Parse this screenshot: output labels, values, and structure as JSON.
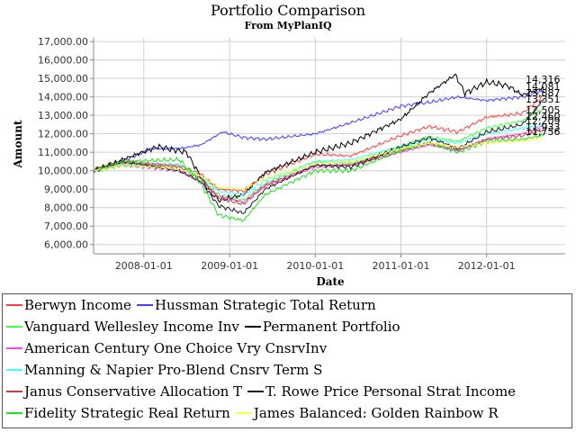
{
  "chart_data": {
    "type": "line",
    "title": "Portfolio Comparison",
    "subtitle": "From MyPlanIQ",
    "xlabel": "Date",
    "ylabel": "Amount",
    "ylim": [
      5500,
      17200
    ],
    "xlim": [
      "2007-06-01",
      "2012-12-01"
    ],
    "yticks": [
      "6,000.00",
      "7,000.00",
      "8,000.00",
      "9,000.00",
      "10,000.00",
      "11,000.00",
      "12,000.00",
      "13,000.00",
      "14,000.00",
      "15,000.00",
      "16,000.00",
      "17,000.00"
    ],
    "ytick_values": [
      6000,
      7000,
      8000,
      9000,
      10000,
      11000,
      12000,
      13000,
      14000,
      15000,
      16000,
      17000
    ],
    "xticks": [
      "2008-01-01",
      "2009-01-01",
      "2010-01-01",
      "2011-01-01",
      "2012-01-01"
    ],
    "grid": true,
    "legend_position": "bottom",
    "end_labels": [
      "14,316",
      "14,081",
      "13,887",
      "13,351",
      "12,505",
      "12,460",
      "12,209",
      "11,933",
      "11,756"
    ],
    "series": [
      {
        "name": "Berwyn Income",
        "color": "#ff4040",
        "x": [
          "2007-06-01",
          "2007-10-01",
          "2008-06-01",
          "2008-09-01",
          "2008-11-15",
          "2009-03-01",
          "2009-06-01",
          "2010-01-01",
          "2010-06-01",
          "2011-01-01",
          "2011-05-01",
          "2011-09-01",
          "2012-01-01",
          "2012-06-01",
          "2012-09-01"
        ],
        "y": [
          10000,
          10400,
          10300,
          9800,
          9000,
          8900,
          9800,
          10900,
          10800,
          11900,
          12400,
          12100,
          12900,
          13100,
          14081
        ]
      },
      {
        "name": "Hussman Strategic Total Return",
        "color": "#4040ff",
        "x": [
          "2007-06-01",
          "2007-10-01",
          "2008-02-01",
          "2008-06-01",
          "2008-09-01",
          "2008-12-01",
          "2009-03-01",
          "2009-06-01",
          "2010-01-01",
          "2010-06-01",
          "2011-01-01",
          "2011-05-01",
          "2011-09-01",
          "2012-01-01",
          "2012-06-01",
          "2012-09-01"
        ],
        "y": [
          10000,
          10500,
          11200,
          11200,
          11400,
          12100,
          11800,
          11700,
          12000,
          12600,
          13500,
          13700,
          14000,
          13800,
          14000,
          14316
        ]
      },
      {
        "name": "Vanguard Wellesley Income Inv",
        "color": "#40ff40",
        "x": [
          "2007-06-01",
          "2007-10-01",
          "2008-06-01",
          "2008-09-01",
          "2008-11-15",
          "2009-03-01",
          "2009-06-01",
          "2010-01-01",
          "2010-06-01",
          "2011-01-01",
          "2011-05-01",
          "2011-09-01",
          "2012-01-01",
          "2012-06-01",
          "2012-09-01"
        ],
        "y": [
          10000,
          10300,
          10100,
          9600,
          8700,
          8400,
          9300,
          10500,
          10400,
          11300,
          11800,
          11600,
          12300,
          12700,
          13351
        ]
      },
      {
        "name": "Permanent Portfolio",
        "color": "#000000",
        "x": [
          "2007-06-01",
          "2007-10-01",
          "2008-03-01",
          "2008-07-01",
          "2008-10-01",
          "2008-11-15",
          "2009-03-01",
          "2009-06-01",
          "2010-01-01",
          "2010-06-01",
          "2011-01-01",
          "2011-05-01",
          "2011-08-20",
          "2011-10-01",
          "2012-01-01",
          "2012-04-01",
          "2012-06-01",
          "2012-09-01"
        ],
        "y": [
          10000,
          10600,
          11300,
          11000,
          9000,
          8400,
          8700,
          9900,
          11000,
          11500,
          12800,
          14200,
          15200,
          14200,
          14800,
          14600,
          14100,
          14500
        ]
      },
      {
        "name": "American Century One Choice Vry CnsrvInv",
        "color": "#ff40ff",
        "x": [
          "2007-06-01",
          "2007-10-01",
          "2008-06-01",
          "2008-09-01",
          "2008-11-15",
          "2009-03-01",
          "2009-06-01",
          "2010-01-01",
          "2010-06-01",
          "2011-01-01",
          "2011-05-01",
          "2011-09-01",
          "2012-01-01",
          "2012-06-01",
          "2012-09-01"
        ],
        "y": [
          10000,
          10300,
          10000,
          9400,
          8600,
          8300,
          9200,
          10200,
          10300,
          11000,
          11400,
          11100,
          11700,
          12000,
          12460
        ]
      },
      {
        "name": "Manning & Napier Pro-Blend Cnsrv Term S",
        "color": "#40ffff",
        "x": [
          "2007-06-01",
          "2007-10-01",
          "2008-06-01",
          "2008-09-01",
          "2008-11-15",
          "2009-03-01",
          "2009-06-01",
          "2010-01-01",
          "2010-06-01",
          "2011-01-01",
          "2011-05-01",
          "2011-09-01",
          "2012-01-01",
          "2012-06-01",
          "2012-09-01"
        ],
        "y": [
          10000,
          10400,
          10300,
          9700,
          8900,
          8700,
          9500,
          10500,
          10600,
          11300,
          11700,
          11500,
          12000,
          12300,
          12505
        ]
      },
      {
        "name": "Janus Conservative Allocation T",
        "color": "#c04040",
        "x": [
          "2007-06-01",
          "2007-10-01",
          "2008-06-01",
          "2008-09-01",
          "2008-11-15",
          "2009-03-01",
          "2009-06-01",
          "2010-01-01",
          "2010-06-01",
          "2011-01-01",
          "2011-05-01",
          "2011-09-01",
          "2012-01-01",
          "2012-06-01",
          "2012-09-01"
        ],
        "y": [
          10000,
          10500,
          10200,
          9600,
          8500,
          8200,
          9200,
          10300,
          10300,
          11100,
          11500,
          11100,
          11700,
          11900,
          12209
        ]
      },
      {
        "name": "T. Rowe Price Personal Strat Income",
        "color": "#202020",
        "x": [
          "2007-06-01",
          "2007-10-01",
          "2008-06-01",
          "2008-09-01",
          "2008-11-15",
          "2009-03-01",
          "2009-06-01",
          "2010-01-01",
          "2010-06-01",
          "2011-01-01",
          "2011-05-01",
          "2011-09-01",
          "2012-01-01",
          "2012-06-01",
          "2012-09-01"
        ],
        "y": [
          10000,
          10500,
          10000,
          9400,
          8100,
          7700,
          9000,
          10300,
          10200,
          11300,
          11800,
          11200,
          12100,
          12500,
          13887
        ]
      },
      {
        "name": "Fidelity Strategic Real Return",
        "color": "#20e020",
        "x": [
          "2007-06-01",
          "2007-10-01",
          "2008-06-01",
          "2008-09-01",
          "2008-11-15",
          "2009-03-01",
          "2009-06-01",
          "2010-01-01",
          "2010-06-01",
          "2011-01-01",
          "2011-05-01",
          "2011-09-01",
          "2012-01-01",
          "2012-06-01",
          "2012-09-01"
        ],
        "y": [
          10000,
          10500,
          10600,
          9300,
          7600,
          7300,
          8700,
          10000,
          10000,
          11100,
          11500,
          11000,
          11600,
          11700,
          11933
        ]
      },
      {
        "name": "James Balanced: Golden Rainbow R",
        "color": "#ffff40",
        "x": [
          "2007-06-01",
          "2007-10-01",
          "2008-06-01",
          "2008-09-01",
          "2008-11-15",
          "2009-03-01",
          "2009-06-01",
          "2010-01-01",
          "2010-06-01",
          "2011-01-01",
          "2011-05-01",
          "2011-09-01",
          "2012-01-01",
          "2012-06-01",
          "2012-09-01"
        ],
        "y": [
          10000,
          10300,
          10100,
          9700,
          9100,
          9000,
          9600,
          10400,
          10500,
          11200,
          11500,
          11300,
          11500,
          11600,
          11756
        ]
      }
    ]
  },
  "legend_rows": [
    [
      0,
      1
    ],
    [
      2,
      3
    ],
    [
      4
    ],
    [
      5
    ],
    [
      6,
      7
    ],
    [
      8,
      9
    ]
  ]
}
